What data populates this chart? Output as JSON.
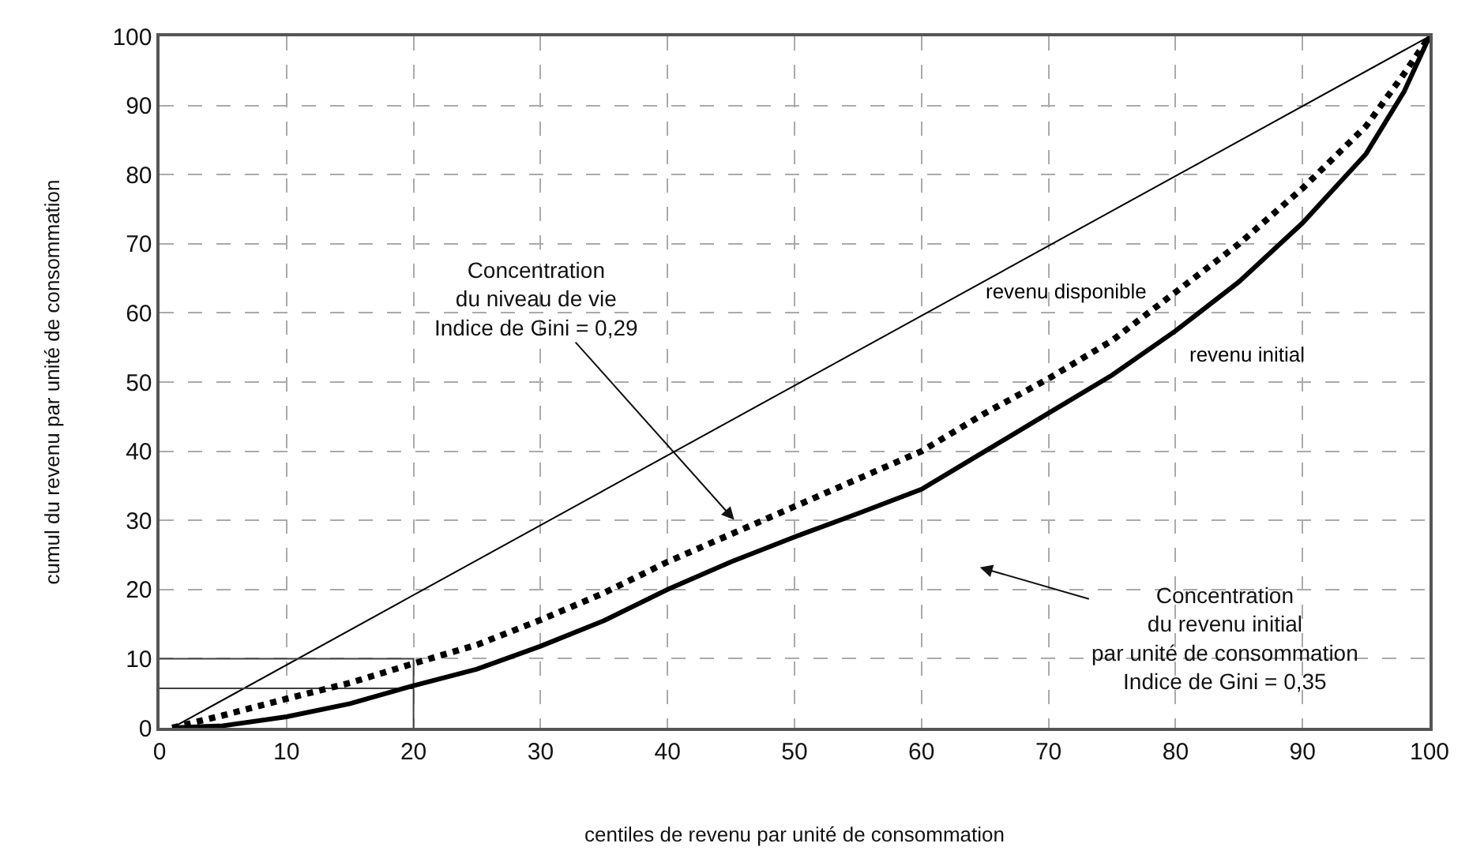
{
  "chart_data": {
    "type": "line",
    "xlabel": "centiles de revenu par unité de consommation",
    "ylabel": "cumul du revenu par unité de consommation",
    "xlim": [
      0,
      100
    ],
    "xticks": [
      0,
      10,
      20,
      30,
      40,
      50,
      60,
      70,
      80,
      90,
      100
    ],
    "ylim": [
      0,
      100
    ],
    "yticks": [
      0,
      10,
      20,
      30,
      40,
      50,
      60,
      70,
      80,
      90,
      100
    ],
    "grid": true,
    "legend": false,
    "marker": "none",
    "series": [
      {
        "color": "#000000",
        "line_style": "solid",
        "x": [
          1,
          100
        ],
        "values": [
          0,
          100
        ]
      },
      {
        "color": "#404040",
        "line_style": "solid",
        "x": [
          0,
          20,
          20
        ],
        "values": [
          10,
          10,
          0
        ]
      },
      {
        "color": "#404040",
        "line_style": "solid",
        "x": [
          0,
          20
        ],
        "values": [
          5.7,
          5.7
        ]
      },
      {
        "name": "revenu disponible",
        "color": "#000000",
        "line_style": "dotted",
        "x": [
          1,
          5,
          10,
          15,
          20,
          25,
          30,
          35,
          40,
          45,
          50,
          55,
          60,
          65,
          70,
          75,
          80,
          85,
          90,
          95,
          98,
          100
        ],
        "values": [
          0,
          1.8,
          4.2,
          6.5,
          9.3,
          12,
          15.6,
          19.5,
          24,
          28,
          32,
          36,
          40,
          45.5,
          50.5,
          56,
          63,
          70,
          78,
          87,
          94.6,
          100
        ]
      },
      {
        "name": "revenu initial",
        "color": "#000000",
        "line_style": "solid",
        "x": [
          1,
          5,
          10,
          15,
          20,
          25,
          30,
          35,
          40,
          45,
          50,
          55,
          60,
          65,
          70,
          75,
          80,
          85,
          90,
          95,
          98,
          100
        ],
        "values": [
          0,
          0.3,
          1.6,
          3.5,
          6.1,
          8.5,
          11.8,
          15.5,
          20,
          24,
          27.6,
          31,
          34.5,
          40,
          45.5,
          51,
          57.4,
          64.5,
          73,
          83,
          92,
          100
        ]
      }
    ],
    "annotations": [
      "Concentration\ndu niveau de vie\nIndice de Gini = 0,29",
      "Concentration\ndu revenu initial\npar unité de consommation\nIndice de Gini = 0,35"
    ]
  }
}
